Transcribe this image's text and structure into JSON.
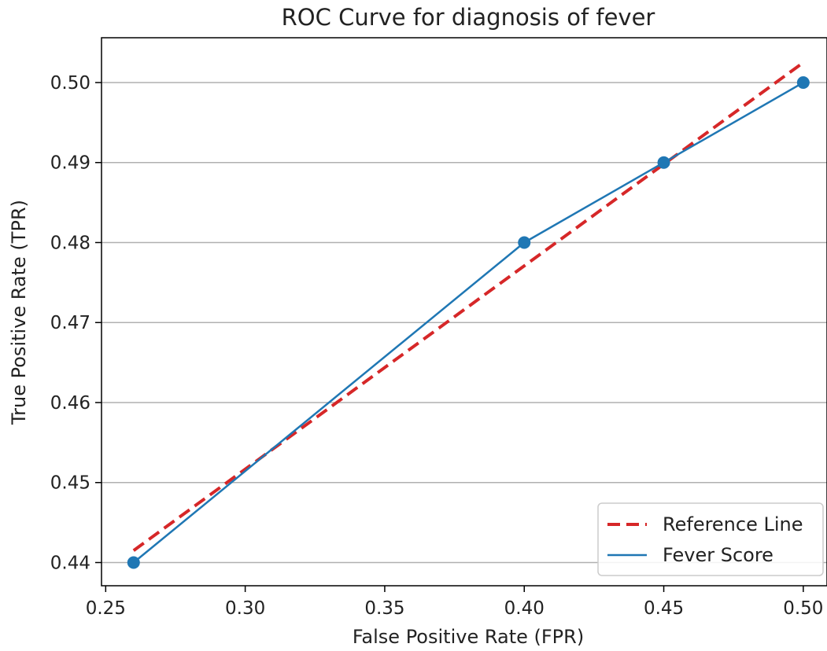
{
  "chart_data": {
    "type": "line",
    "title": "ROC Curve for diagnosis of fever",
    "xlabel": "False Positive Rate (FPR)",
    "ylabel": "True Positive Rate (TPR)",
    "xlim": [
      0.2485,
      0.5085
    ],
    "ylim": [
      0.4371,
      0.5056
    ],
    "xticks": [
      0.25,
      0.3,
      0.35,
      0.4,
      0.45,
      0.5
    ],
    "xtick_labels": [
      "0.25",
      "0.30",
      "0.35",
      "0.40",
      "0.45",
      "0.50"
    ],
    "yticks": [
      0.44,
      0.45,
      0.46,
      0.47,
      0.48,
      0.49,
      0.5
    ],
    "ytick_labels": [
      "0.44",
      "0.45",
      "0.46",
      "0.47",
      "0.48",
      "0.49",
      "0.50"
    ],
    "grid": "horizontal",
    "legend_position": "bottom-right",
    "series": [
      {
        "name": "Reference Line",
        "style": "dashed",
        "color": "#d62728",
        "x": [
          0.26,
          0.5
        ],
        "y": [
          0.4415,
          0.5025
        ]
      },
      {
        "name": "Fever Score",
        "style": "solid-with-markers",
        "color": "#1f77b4",
        "x": [
          0.26,
          0.4,
          0.45,
          0.5
        ],
        "y": [
          0.44,
          0.48,
          0.49,
          0.5
        ]
      }
    ]
  }
}
